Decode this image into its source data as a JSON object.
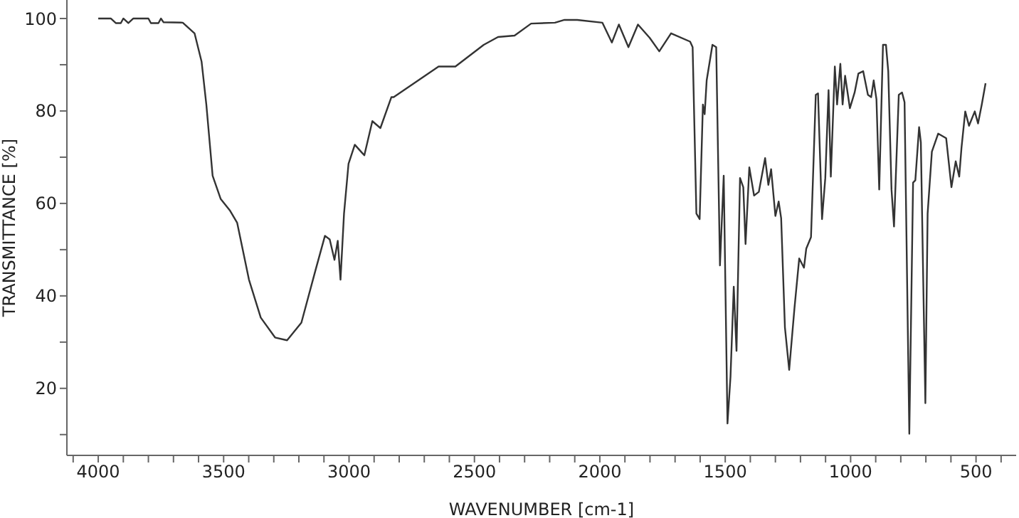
{
  "chart_data": {
    "type": "line",
    "xlabel": "WAVENUMBER [cm-1]",
    "ylabel": "TRANSMITTANCE [%]",
    "xlim": [
      4125,
      340
    ],
    "ylim": [
      5.5,
      104
    ],
    "xticks": [
      {
        "value": 4100,
        "label": null
      },
      4000,
      {
        "value": 3900,
        "label": null
      },
      {
        "value": 3800,
        "label": null
      },
      {
        "value": 3700,
        "label": null
      },
      {
        "value": 3600,
        "label": null
      },
      3500,
      {
        "value": 3400,
        "label": null
      },
      {
        "value": 3300,
        "label": null
      },
      {
        "value": 3200,
        "label": null
      },
      {
        "value": 3100,
        "label": null
      },
      3000,
      {
        "value": 2900,
        "label": null
      },
      {
        "value": 2800,
        "label": null
      },
      {
        "value": 2700,
        "label": null
      },
      {
        "value": 2600,
        "label": null
      },
      2500,
      {
        "value": 2400,
        "label": null
      },
      {
        "value": 2300,
        "label": null
      },
      {
        "value": 2200,
        "label": null
      },
      {
        "value": 2100,
        "label": null
      },
      2000,
      {
        "value": 1900,
        "label": null
      },
      {
        "value": 1800,
        "label": null
      },
      {
        "value": 1700,
        "label": null
      },
      {
        "value": 1600,
        "label": null
      },
      1500,
      {
        "value": 1400,
        "label": null
      },
      {
        "value": 1300,
        "label": null
      },
      {
        "value": 1200,
        "label": null
      },
      {
        "value": 1100,
        "label": null
      },
      1000,
      {
        "value": 900,
        "label": null
      },
      {
        "value": 800,
        "label": null
      },
      {
        "value": 700,
        "label": null
      },
      {
        "value": 600,
        "label": null
      },
      500,
      {
        "value": 400,
        "label": null
      }
    ],
    "yticks": [
      {
        "value": 10,
        "label": null
      },
      20,
      {
        "value": 30,
        "label": null
      },
      40,
      {
        "value": 50,
        "label": null
      },
      60,
      {
        "value": 70,
        "label": null
      },
      80,
      {
        "value": 90,
        "label": null
      },
      100
    ],
    "marker": "none",
    "line_style": "solid",
    "series": [
      {
        "color": "#333333",
        "x": [
          4000,
          3950,
          3930,
          3910,
          3900,
          3880,
          3870,
          3860,
          3800,
          3790,
          3760,
          3750,
          3740,
          3663,
          3616,
          3588,
          3569,
          3544,
          3512,
          3474,
          3446,
          3399,
          3352,
          3295,
          3247,
          3190,
          3134,
          3096,
          3077,
          3058,
          3045,
          3034,
          3020,
          3002,
          2977,
          2939,
          2907,
          2875,
          2831,
          2822,
          2643,
          2576,
          2463,
          2406,
          2340,
          2274,
          2179,
          2141,
          2090,
          1990,
          1952,
          1924,
          1886,
          1848,
          1801,
          1763,
          1716,
          1640,
          1630,
          1615,
          1602,
          1589,
          1582,
          1574,
          1551,
          1536,
          1521,
          1506,
          1491,
          1479,
          1466,
          1455,
          1441,
          1428,
          1419,
          1404,
          1385,
          1366,
          1341,
          1328,
          1317,
          1300,
          1287,
          1277,
          1262,
          1245,
          1224,
          1205,
          1186,
          1177,
          1158,
          1139,
          1130,
          1114,
          1101,
          1088,
          1079,
          1063,
          1054,
          1041,
          1032,
          1022,
          1003,
          984,
          969,
          950,
          931,
          918,
          908,
          897,
          886,
          871,
          859,
          850,
          837,
          827,
          808,
          795,
          785,
          766,
          751,
          742,
          727,
          720,
          702,
          693,
          676,
          651,
          619,
          598,
          581,
          567,
          558,
          543,
          528,
          505,
          492,
          477,
          462
        ],
        "values": [
          100,
          100,
          99,
          99,
          100,
          99,
          99.5,
          100,
          100,
          99,
          99,
          100,
          99.2,
          99.1,
          96.8,
          90.7,
          81.4,
          66,
          61,
          58.4,
          55.8,
          43.5,
          35.3,
          31,
          30.4,
          34.2,
          45.5,
          53,
          52.2,
          47.8,
          51.9,
          43.5,
          57.8,
          68.6,
          72.7,
          70.4,
          77.8,
          76.3,
          83,
          83,
          89.6,
          89.6,
          94.3,
          96,
          96.3,
          98.9,
          99.1,
          99.7,
          99.7,
          99.1,
          94.8,
          98.7,
          93.8,
          98.7,
          95.8,
          92.9,
          96.8,
          95,
          93.8,
          57.8,
          56.6,
          81.4,
          79.3,
          86.6,
          94.3,
          93.8,
          46.6,
          66,
          12.4,
          22.5,
          42,
          28.1,
          65.5,
          63.5,
          51.2,
          67.8,
          61.7,
          62.5,
          69.8,
          64,
          67.4,
          57.3,
          60.4,
          56.8,
          33.2,
          24,
          37.3,
          48.1,
          46.1,
          50.2,
          52.7,
          83.5,
          83.8,
          56.6,
          65.5,
          84.5,
          65.8,
          89.6,
          81.4,
          90.2,
          81.4,
          87.6,
          80.6,
          84,
          88.1,
          88.6,
          83.5,
          83,
          86.6,
          82.5,
          63,
          94.3,
          94.3,
          88.6,
          63,
          55,
          83.5,
          84,
          81.9,
          10.2,
          64.5,
          65,
          76.5,
          73.2,
          16.8,
          57.8,
          71.2,
          75.1,
          74.1,
          63.5,
          69.1,
          65.8,
          72,
          79.9,
          76.8,
          79.9,
          77.3,
          81.4,
          86
        ]
      }
    ]
  }
}
